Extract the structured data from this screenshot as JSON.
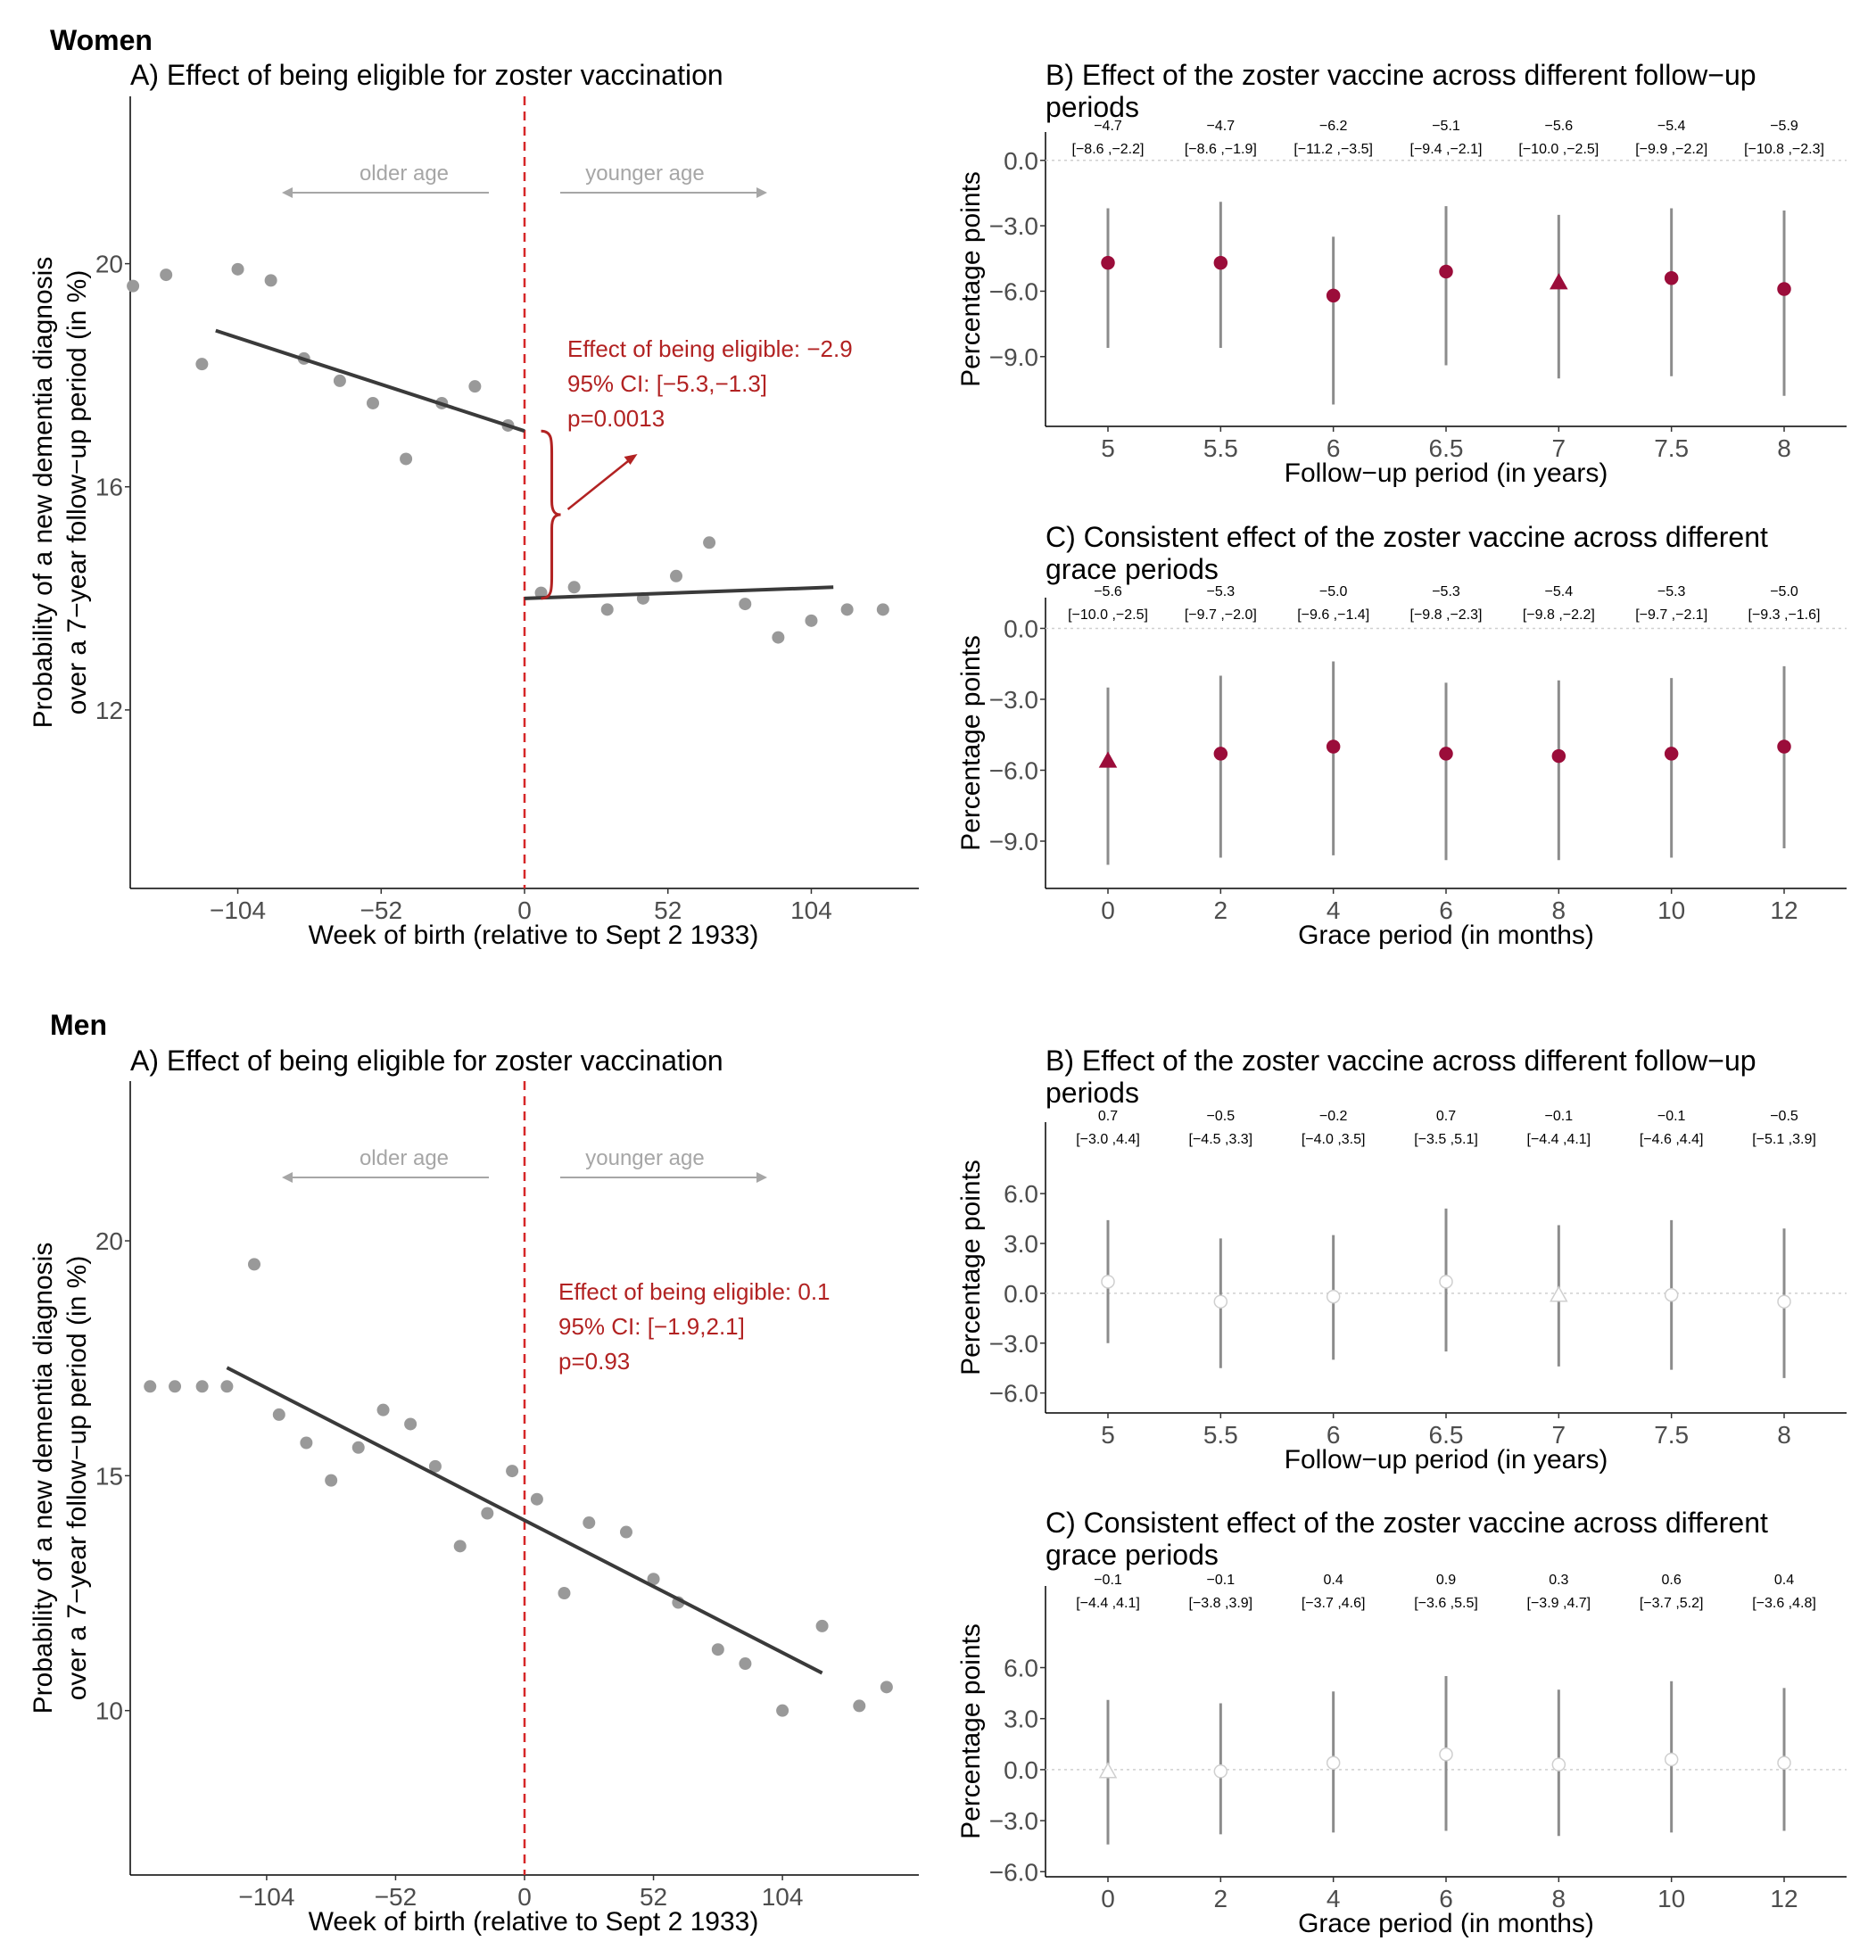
{
  "chart_data": [
    {
      "id": "women-A",
      "type": "scatter",
      "section": "Women",
      "title": "A) Effect of being eligible for zoster vaccination",
      "xlabel": "Week of birth (relative to Sept 2 1933)",
      "ylabel": [
        "Probability of a new dementia diagnosis",
        "over a 7−year follow−up period (in %)"
      ],
      "xlim": [
        -143,
        143
      ],
      "ylim": [
        8.8,
        23.0
      ],
      "xticks": [
        -104,
        -52,
        0,
        52,
        104
      ],
      "xtick_labels": [
        "−104",
        "−52",
        "0",
        "52",
        "104"
      ],
      "yticks": [
        12,
        16,
        20
      ],
      "ytick_labels": [
        "12",
        "16",
        "20"
      ],
      "points": {
        "x": [
          -142,
          -130,
          -117,
          -104,
          -92,
          -80,
          -67,
          -55,
          -43,
          -30,
          -18,
          -6,
          6,
          18,
          30,
          43,
          55,
          67,
          80,
          92,
          104,
          117,
          130
        ],
        "y": [
          19.6,
          19.8,
          18.2,
          19.9,
          19.7,
          18.3,
          17.9,
          17.5,
          16.5,
          17.5,
          17.8,
          17.1,
          14.1,
          14.2,
          13.8,
          14.0,
          14.4,
          15.0,
          13.9,
          13.3,
          13.6,
          13.8,
          13.8
        ]
      },
      "fit_lines": [
        {
          "x": [
            -112,
            0
          ],
          "y": [
            18.8,
            17.0
          ]
        },
        {
          "x": [
            0,
            112
          ],
          "y": [
            14.0,
            14.2
          ]
        }
      ],
      "cutoff": 0,
      "direction_labels": [
        "older age",
        "younger age"
      ],
      "brace": {
        "x": 6,
        "y_top": 17.0,
        "y_bottom": 14.0
      },
      "annotation": [
        "Effect of being eligible: −2.9",
        "95% CI: [−5.3,−1.3]",
        "p=0.0013"
      ]
    },
    {
      "id": "women-B",
      "type": "scatter",
      "title": [
        "B) Effect of the zoster vaccine across different follow−up",
        "periods"
      ],
      "xlabel": "Follow−up period (in years)",
      "ylabel": "Percentage points",
      "categories": [
        "5",
        "5.5",
        "6",
        "6.5",
        "7",
        "7.5",
        "8"
      ],
      "estimates": [
        -4.7,
        -4.7,
        -6.2,
        -5.1,
        -5.6,
        -5.4,
        -5.9
      ],
      "ci_low": [
        -8.6,
        -8.6,
        -11.2,
        -9.4,
        -10.0,
        -9.9,
        -10.8
      ],
      "ci_high": [
        -2.2,
        -1.9,
        -3.5,
        -2.1,
        -2.5,
        -2.2,
        -2.3
      ],
      "value_labels": [
        "−4.7",
        "−4.7",
        "−6.2",
        "−5.1",
        "−5.6",
        "−5.4",
        "−5.9"
      ],
      "ci_labels": [
        "[−8.6 ,−2.2]",
        "[−8.6 ,−1.9]",
        "[−11.2 ,−3.5]",
        "[−9.4 ,−2.1]",
        "[−10.0 ,−2.5]",
        "[−9.9 ,−2.2]",
        "[−10.8 ,−2.3]"
      ],
      "markers": [
        "circle",
        "circle",
        "circle",
        "circle",
        "triangle",
        "circle",
        "circle"
      ],
      "ylim": [
        -12.2,
        1.3
      ],
      "yticks": [
        0,
        -3,
        -6,
        -9
      ],
      "ytick_labels": [
        "0.0",
        "−3.0",
        "−6.0",
        "−9.0"
      ],
      "filled": true
    },
    {
      "id": "women-C",
      "type": "scatter",
      "title": [
        "C) Consistent effect of the zoster vaccine across different",
        "grace periods"
      ],
      "xlabel": "Grace period (in months)",
      "ylabel": "Percentage points",
      "categories": [
        "0",
        "2",
        "4",
        "6",
        "8",
        "10",
        "12"
      ],
      "estimates": [
        -5.6,
        -5.3,
        -5.0,
        -5.3,
        -5.4,
        -5.3,
        -5.0
      ],
      "ci_low": [
        -10.0,
        -9.7,
        -9.6,
        -9.8,
        -9.8,
        -9.7,
        -9.3
      ],
      "ci_high": [
        -2.5,
        -2.0,
        -1.4,
        -2.3,
        -2.2,
        -2.1,
        -1.6
      ],
      "value_labels": [
        "−5.6",
        "−5.3",
        "−5.0",
        "−5.3",
        "−5.4",
        "−5.3",
        "−5.0"
      ],
      "ci_labels": [
        "[−10.0 ,−2.5]",
        "[−9.7 ,−2.0]",
        "[−9.6 ,−1.4]",
        "[−9.8 ,−2.3]",
        "[−9.8 ,−2.2]",
        "[−9.7 ,−2.1]",
        "[−9.3 ,−1.6]"
      ],
      "markers": [
        "triangle",
        "circle",
        "circle",
        "circle",
        "circle",
        "circle",
        "circle"
      ],
      "ylim": [
        -11.0,
        1.3
      ],
      "yticks": [
        0,
        -3,
        -6,
        -9
      ],
      "ytick_labels": [
        "0.0",
        "−3.0",
        "−6.0",
        "−9.0"
      ],
      "filled": true
    },
    {
      "id": "men-A",
      "type": "scatter",
      "section": "Men",
      "title": "A) Effect of being eligible for zoster vaccination",
      "xlabel": "Week of birth (relative to Sept 2 1933)",
      "ylabel": [
        "Probability of a new dementia diagnosis",
        "over a 7−year follow−up period (in %)"
      ],
      "xlim": [
        -159,
        159
      ],
      "ylim": [
        6.5,
        23.4
      ],
      "xticks": [
        -104,
        -52,
        0,
        52,
        104
      ],
      "xtick_labels": [
        "−104",
        "−52",
        "0",
        "52",
        "104"
      ],
      "yticks": [
        10,
        15,
        20
      ],
      "ytick_labels": [
        "10",
        "15",
        "20"
      ],
      "points": {
        "x": [
          -151,
          -141,
          -130,
          -120,
          -109,
          -99,
          -88,
          -78,
          -67,
          -57,
          -46,
          -36,
          -26,
          -15,
          -5,
          5,
          16,
          26,
          41,
          52,
          62,
          78,
          89,
          104,
          120,
          135,
          146
        ],
        "y": [
          16.9,
          16.9,
          16.9,
          16.9,
          19.5,
          16.3,
          15.7,
          14.9,
          15.6,
          16.4,
          16.1,
          15.2,
          13.5,
          14.2,
          15.1,
          14.5,
          12.5,
          14.0,
          13.8,
          12.8,
          12.3,
          11.3,
          11.0,
          10.0,
          11.8,
          10.1,
          10.5
        ]
      },
      "fit_lines": [
        {
          "x": [
            -120,
            120
          ],
          "y": [
            17.3,
            10.8
          ]
        }
      ],
      "cutoff": 0,
      "direction_labels": [
        "older age",
        "younger age"
      ],
      "annotation": [
        "Effect of being eligible: 0.1",
        "95% CI: [−1.9,2.1]",
        "p=0.93"
      ]
    },
    {
      "id": "men-B",
      "type": "scatter",
      "title": [
        "B) Effect of the zoster vaccine across different follow−up",
        "periods"
      ],
      "xlabel": "Follow−up period (in years)",
      "ylabel": "Percentage points",
      "categories": [
        "5",
        "5.5",
        "6",
        "6.5",
        "7",
        "7.5",
        "8"
      ],
      "estimates": [
        0.7,
        -0.5,
        -0.2,
        0.7,
        -0.1,
        -0.1,
        -0.5
      ],
      "ci_low": [
        -3.0,
        -4.5,
        -4.0,
        -3.5,
        -4.4,
        -4.6,
        -5.1
      ],
      "ci_high": [
        4.4,
        3.3,
        3.5,
        5.1,
        4.1,
        4.4,
        3.9
      ],
      "value_labels": [
        "0.7",
        "−0.5",
        "−0.2",
        "0.7",
        "−0.1",
        "−0.1",
        "−0.5"
      ],
      "ci_labels": [
        "[−3.0 ,4.4]",
        "[−4.5 ,3.3]",
        "[−4.0 ,3.5]",
        "[−3.5 ,5.1]",
        "[−4.4 ,4.1]",
        "[−4.6 ,4.4]",
        "[−5.1 ,3.9]"
      ],
      "markers": [
        "circle",
        "circle",
        "circle",
        "circle",
        "triangle",
        "circle",
        "circle"
      ],
      "ylim": [
        -7.2,
        10.3
      ],
      "yticks": [
        6,
        3,
        0,
        -3,
        -6
      ],
      "ytick_labels": [
        "6.0",
        "3.0",
        "0.0",
        "−3.0",
        "−6.0"
      ],
      "filled": false
    },
    {
      "id": "men-C",
      "type": "scatter",
      "title": [
        "C) Consistent effect of the zoster vaccine across different",
        "grace periods"
      ],
      "xlabel": "Grace period (in months)",
      "ylabel": "Percentage points",
      "categories": [
        "0",
        "2",
        "4",
        "6",
        "8",
        "10",
        "12"
      ],
      "estimates": [
        -0.1,
        -0.1,
        0.4,
        0.9,
        0.3,
        0.6,
        0.4
      ],
      "ci_low": [
        -4.4,
        -3.8,
        -3.7,
        -3.6,
        -3.9,
        -3.7,
        -3.6
      ],
      "ci_high": [
        4.1,
        3.9,
        4.6,
        5.5,
        4.7,
        5.2,
        4.8
      ],
      "value_labels": [
        "−0.1",
        "−0.1",
        "0.4",
        "0.9",
        "0.3",
        "0.6",
        "0.4"
      ],
      "ci_labels": [
        "[−4.4 ,4.1]",
        "[−3.8 ,3.9]",
        "[−3.7 ,4.6]",
        "[−3.6 ,5.5]",
        "[−3.9 ,4.7]",
        "[−3.7 ,5.2]",
        "[−3.6 ,4.8]"
      ],
      "markers": [
        "triangle",
        "circle",
        "circle",
        "circle",
        "circle",
        "circle",
        "circle"
      ],
      "ylim": [
        -6.3,
        10.8
      ],
      "yticks": [
        6,
        3,
        0,
        -3,
        -6
      ],
      "ytick_labels": [
        "6.0",
        "3.0",
        "0.0",
        "−3.0",
        "−6.0"
      ],
      "filled": false
    }
  ],
  "colors": {
    "estimate_fill": "#9b0d3a",
    "scatter_point": "#999999",
    "fit_line": "#3a3a3a",
    "cutoff_line": "#d62728",
    "annotation": "#b22222",
    "ci_line": "#8c8c8c",
    "direction_arrow": "#a6a6a6",
    "axis": "#000000"
  }
}
